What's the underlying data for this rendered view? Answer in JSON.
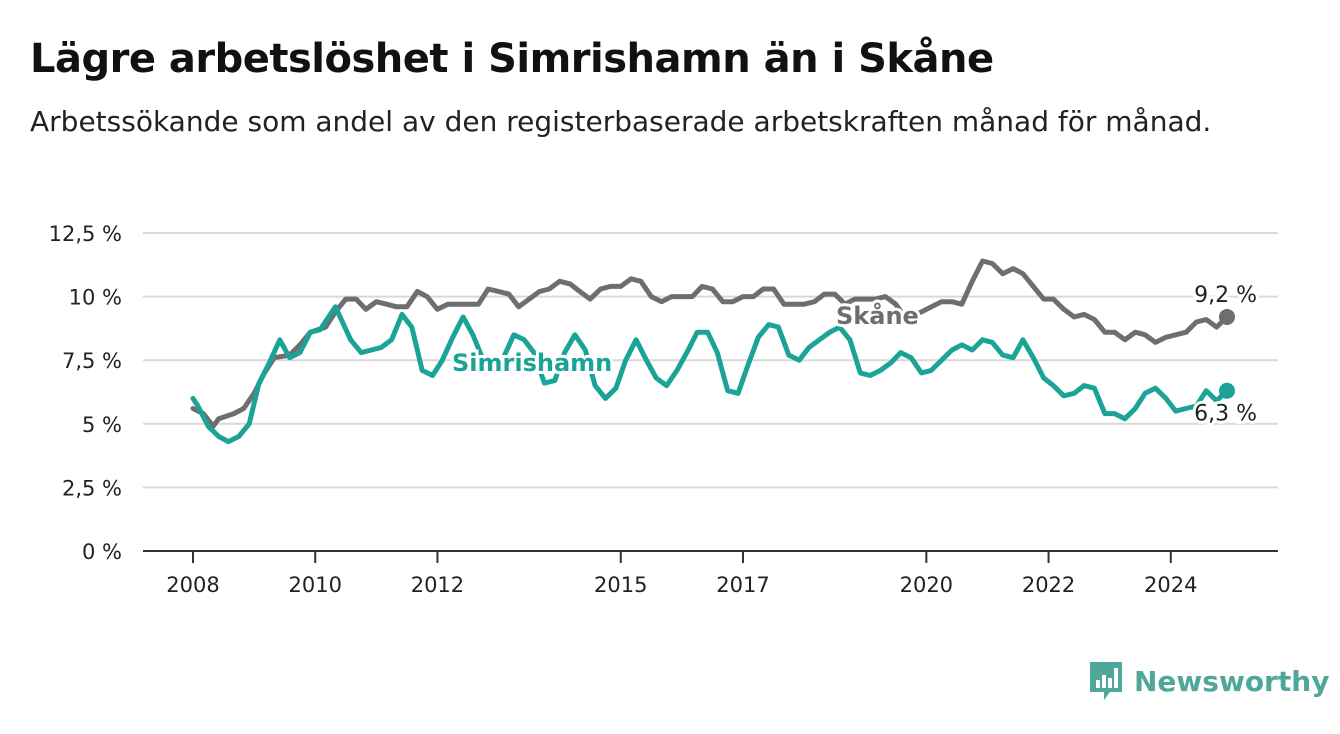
{
  "header": {
    "title": "Lägre arbetslöshet i Simrishamn än i Skåne",
    "subtitle": "Arbetssökande som andel av den registerbaserade arbetskraften månad för månad."
  },
  "brand": {
    "name": "Newsworthy",
    "icon": "newsworthy-logo-icon",
    "color": "#4ea79a"
  },
  "chart_data": {
    "type": "line",
    "title": "Lägre arbetslöshet i Simrishamn än i Skåne",
    "subtitle": "Arbetssökande som andel av den registerbaserade arbetskraften månad för månad.",
    "xlabel": "",
    "ylabel": "",
    "x_range": [
      2008.0,
      2024.92
    ],
    "ylim": [
      0,
      12.5
    ],
    "y_ticks": [
      0,
      2.5,
      5,
      7.5,
      10,
      12.5
    ],
    "y_tick_labels": [
      "0 %",
      "2,5 %",
      "5 %",
      "7,5 %",
      "10 %",
      "12,5 %"
    ],
    "x_ticks": [
      2008,
      2010,
      2012,
      2015,
      2017,
      2020,
      2022,
      2024
    ],
    "x_tick_labels": [
      "2008",
      "2010",
      "2012",
      "2015",
      "2017",
      "2020",
      "2022",
      "2024"
    ],
    "grid": true,
    "series": [
      {
        "name": "Skåne",
        "color": "#6e6d72",
        "end_label": "9,2 %",
        "points": [
          [
            2008.0,
            5.6
          ],
          [
            2008.17,
            5.4
          ],
          [
            2008.33,
            4.9
          ],
          [
            2008.42,
            5.2
          ],
          [
            2008.67,
            5.4
          ],
          [
            2008.83,
            5.6
          ],
          [
            2009.0,
            6.2
          ],
          [
            2009.17,
            7.0
          ],
          [
            2009.33,
            7.6
          ],
          [
            2009.58,
            7.7
          ],
          [
            2009.75,
            8.1
          ],
          [
            2009.92,
            8.6
          ],
          [
            2010.17,
            8.8
          ],
          [
            2010.33,
            9.4
          ],
          [
            2010.5,
            9.9
          ],
          [
            2010.67,
            9.9
          ],
          [
            2010.83,
            9.5
          ],
          [
            2011.0,
            9.8
          ],
          [
            2011.17,
            9.7
          ],
          [
            2011.33,
            9.6
          ],
          [
            2011.5,
            9.6
          ],
          [
            2011.67,
            10.2
          ],
          [
            2011.83,
            10.0
          ],
          [
            2012.0,
            9.5
          ],
          [
            2012.17,
            9.7
          ],
          [
            2012.33,
            9.7
          ],
          [
            2012.5,
            9.7
          ],
          [
            2012.67,
            9.7
          ],
          [
            2012.83,
            10.3
          ],
          [
            2013.0,
            10.2
          ],
          [
            2013.17,
            10.1
          ],
          [
            2013.33,
            9.6
          ],
          [
            2013.5,
            9.9
          ],
          [
            2013.67,
            10.2
          ],
          [
            2013.83,
            10.3
          ],
          [
            2014.0,
            10.6
          ],
          [
            2014.17,
            10.5
          ],
          [
            2014.33,
            10.2
          ],
          [
            2014.5,
            9.9
          ],
          [
            2014.67,
            10.3
          ],
          [
            2014.83,
            10.4
          ],
          [
            2015.0,
            10.4
          ],
          [
            2015.17,
            10.7
          ],
          [
            2015.33,
            10.6
          ],
          [
            2015.5,
            10.0
          ],
          [
            2015.67,
            9.8
          ],
          [
            2015.83,
            10.0
          ],
          [
            2016.0,
            10.0
          ],
          [
            2016.17,
            10.0
          ],
          [
            2016.33,
            10.4
          ],
          [
            2016.5,
            10.3
          ],
          [
            2016.67,
            9.8
          ],
          [
            2016.83,
            9.8
          ],
          [
            2017.0,
            10.0
          ],
          [
            2017.17,
            10.0
          ],
          [
            2017.33,
            10.3
          ],
          [
            2017.5,
            10.3
          ],
          [
            2017.67,
            9.7
          ],
          [
            2017.83,
            9.7
          ],
          [
            2018.0,
            9.7
          ],
          [
            2018.17,
            9.8
          ],
          [
            2018.33,
            10.1
          ],
          [
            2018.5,
            10.1
          ],
          [
            2018.67,
            9.7
          ],
          [
            2018.83,
            9.9
          ],
          [
            2019.0,
            9.9
          ],
          [
            2019.17,
            9.9
          ],
          [
            2019.33,
            10.0
          ],
          [
            2019.5,
            9.7
          ],
          [
            2019.67,
            9.1
          ],
          [
            2020.25,
            9.8
          ],
          [
            2020.42,
            9.8
          ],
          [
            2020.58,
            9.7
          ],
          [
            2020.75,
            10.6
          ],
          [
            2020.92,
            11.4
          ],
          [
            2021.08,
            11.3
          ],
          [
            2021.25,
            10.9
          ],
          [
            2021.42,
            11.1
          ],
          [
            2021.58,
            10.9
          ],
          [
            2021.75,
            10.4
          ],
          [
            2021.92,
            9.9
          ],
          [
            2022.08,
            9.9
          ],
          [
            2022.25,
            9.5
          ],
          [
            2022.42,
            9.2
          ],
          [
            2022.58,
            9.3
          ],
          [
            2022.75,
            9.1
          ],
          [
            2022.92,
            8.6
          ],
          [
            2023.08,
            8.6
          ],
          [
            2023.25,
            8.3
          ],
          [
            2023.42,
            8.6
          ],
          [
            2023.58,
            8.5
          ],
          [
            2023.75,
            8.2
          ],
          [
            2023.92,
            8.4
          ],
          [
            2024.08,
            8.5
          ],
          [
            2024.25,
            8.6
          ],
          [
            2024.42,
            9.0
          ],
          [
            2024.58,
            9.1
          ],
          [
            2024.75,
            8.8
          ],
          [
            2024.92,
            9.2
          ]
        ]
      },
      {
        "name": "Simrishamn",
        "color": "#1aa396",
        "end_label": "6,3 %",
        "points": [
          [
            2008.0,
            6.0
          ],
          [
            2008.08,
            5.7
          ],
          [
            2008.25,
            4.9
          ],
          [
            2008.42,
            4.5
          ],
          [
            2008.58,
            4.3
          ],
          [
            2008.75,
            4.5
          ],
          [
            2008.92,
            5.0
          ],
          [
            2009.08,
            6.6
          ],
          [
            2009.25,
            7.4
          ],
          [
            2009.42,
            8.3
          ],
          [
            2009.58,
            7.6
          ],
          [
            2009.75,
            7.8
          ],
          [
            2009.92,
            8.6
          ],
          [
            2010.08,
            8.7
          ],
          [
            2010.33,
            9.6
          ],
          [
            2010.58,
            8.3
          ],
          [
            2010.75,
            7.8
          ],
          [
            2010.92,
            7.9
          ],
          [
            2011.08,
            8.0
          ],
          [
            2011.25,
            8.3
          ],
          [
            2011.42,
            9.3
          ],
          [
            2011.58,
            8.8
          ],
          [
            2011.75,
            7.1
          ],
          [
            2011.92,
            6.9
          ],
          [
            2012.08,
            7.5
          ],
          [
            2012.25,
            8.4
          ],
          [
            2012.42,
            9.2
          ],
          [
            2012.58,
            8.5
          ],
          [
            2012.75,
            7.5
          ],
          [
            2012.92,
            7.1
          ],
          [
            2013.08,
            7.6
          ],
          [
            2013.25,
            8.5
          ],
          [
            2013.42,
            8.3
          ],
          [
            2013.58,
            7.8
          ],
          [
            2013.75,
            6.6
          ],
          [
            2013.92,
            6.7
          ],
          [
            2014.08,
            7.8
          ],
          [
            2014.25,
            8.5
          ],
          [
            2014.42,
            7.9
          ],
          [
            2014.58,
            6.5
          ],
          [
            2014.75,
            6.0
          ],
          [
            2014.92,
            6.4
          ],
          [
            2015.08,
            7.5
          ],
          [
            2015.25,
            8.3
          ],
          [
            2015.42,
            7.5
          ],
          [
            2015.58,
            6.8
          ],
          [
            2015.75,
            6.5
          ],
          [
            2015.92,
            7.1
          ],
          [
            2016.08,
            7.8
          ],
          [
            2016.25,
            8.6
          ],
          [
            2016.42,
            8.6
          ],
          [
            2016.58,
            7.8
          ],
          [
            2016.75,
            6.3
          ],
          [
            2016.92,
            6.2
          ],
          [
            2017.08,
            7.3
          ],
          [
            2017.25,
            8.4
          ],
          [
            2017.42,
            8.9
          ],
          [
            2017.58,
            8.8
          ],
          [
            2017.75,
            7.7
          ],
          [
            2017.92,
            7.5
          ],
          [
            2018.08,
            8.0
          ],
          [
            2018.25,
            8.3
          ],
          [
            2018.42,
            8.6
          ],
          [
            2018.58,
            8.8
          ],
          [
            2018.75,
            8.3
          ],
          [
            2018.92,
            7.0
          ],
          [
            2019.08,
            6.9
          ],
          [
            2019.25,
            7.1
          ],
          [
            2019.42,
            7.4
          ],
          [
            2019.58,
            7.8
          ],
          [
            2019.75,
            7.6
          ],
          [
            2019.92,
            7.0
          ],
          [
            2020.08,
            7.1
          ],
          [
            2020.25,
            7.5
          ],
          [
            2020.42,
            7.9
          ],
          [
            2020.58,
            8.1
          ],
          [
            2020.75,
            7.9
          ],
          [
            2020.92,
            8.3
          ],
          [
            2021.08,
            8.2
          ],
          [
            2021.25,
            7.7
          ],
          [
            2021.42,
            7.6
          ],
          [
            2021.58,
            8.3
          ],
          [
            2021.75,
            7.6
          ],
          [
            2021.92,
            6.8
          ],
          [
            2022.08,
            6.5
          ],
          [
            2022.25,
            6.1
          ],
          [
            2022.42,
            6.2
          ],
          [
            2022.58,
            6.5
          ],
          [
            2022.75,
            6.4
          ],
          [
            2022.92,
            5.4
          ],
          [
            2023.08,
            5.4
          ],
          [
            2023.25,
            5.2
          ],
          [
            2023.42,
            5.6
          ],
          [
            2023.58,
            6.2
          ],
          [
            2023.75,
            6.4
          ],
          [
            2023.92,
            6.0
          ],
          [
            2024.08,
            5.5
          ],
          [
            2024.25,
            5.6
          ],
          [
            2024.42,
            5.7
          ],
          [
            2024.58,
            6.3
          ],
          [
            2024.75,
            5.9
          ],
          [
            2024.92,
            6.3
          ]
        ]
      }
    ]
  }
}
